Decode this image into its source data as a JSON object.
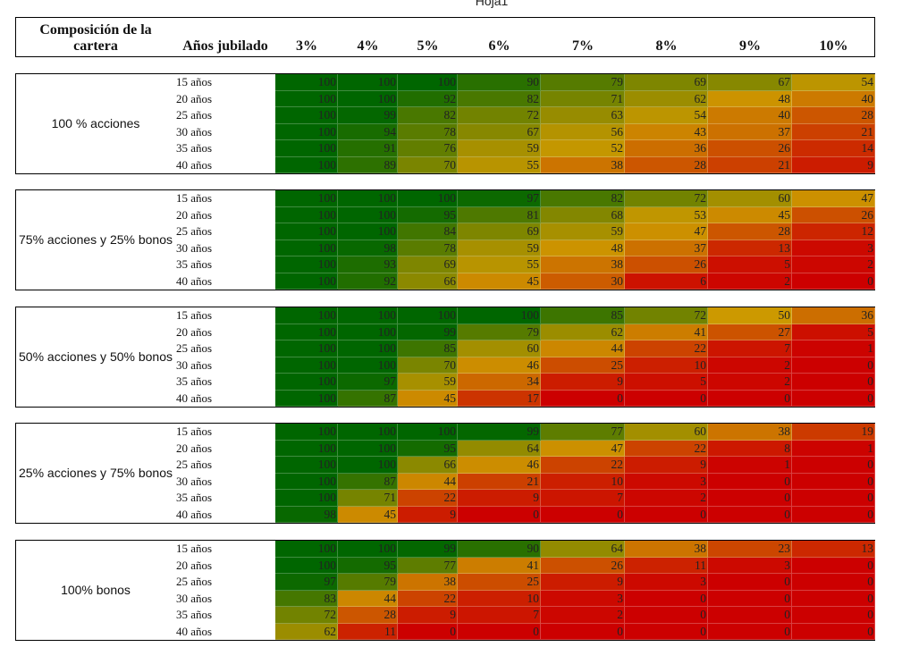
{
  "sheet_title": "Hoja1",
  "header": {
    "composition": "Composición de la cartera",
    "years": "Años jubilado",
    "rates": [
      "3%",
      "4%",
      "5%",
      "6%",
      "7%",
      "8%",
      "9%",
      "10%"
    ]
  },
  "color_scale": {
    "low": "#cc0000",
    "mid": "#cc9900",
    "high": "#006600",
    "min": 0,
    "max": 100
  },
  "groups": [
    {
      "label": "100 % acciones",
      "rows": [
        {
          "years": "15 años",
          "values": [
            "100",
            "100",
            "100",
            "90",
            "79",
            "69",
            "67",
            "54"
          ]
        },
        {
          "years": "20 años",
          "values": [
            "100",
            "100",
            "92",
            "82",
            "71",
            "62",
            "48",
            "40"
          ]
        },
        {
          "years": "25 años",
          "values": [
            "100",
            "99",
            "82",
            "72",
            "63",
            "54",
            "40",
            "28"
          ]
        },
        {
          "years": "30 años",
          "values": [
            "100",
            "94",
            "78",
            "67",
            "56",
            "43",
            "37",
            "21"
          ]
        },
        {
          "years": "35 años",
          "values": [
            "100",
            "91",
            "76",
            "59",
            "52",
            "36",
            "26",
            "14"
          ]
        },
        {
          "years": "40 años",
          "values": [
            "100",
            "89",
            "70",
            "55",
            "38",
            "28",
            "21",
            "9"
          ]
        }
      ]
    },
    {
      "label": "75% acciones y 25% bonos",
      "rows": [
        {
          "years": "15 años",
          "values": [
            "100",
            "100",
            "100",
            "97",
            "82",
            "72",
            "60",
            "47"
          ]
        },
        {
          "years": "20 años",
          "values": [
            "100",
            "100",
            "95",
            "81",
            "68",
            "53",
            "45",
            "26"
          ]
        },
        {
          "years": "25 años",
          "values": [
            "100",
            "100",
            "84",
            "69",
            "59",
            "47",
            "28",
            "12"
          ]
        },
        {
          "years": "30 años",
          "values": [
            "100",
            "98",
            "78",
            "59",
            "48",
            "37",
            "13",
            "3"
          ]
        },
        {
          "years": "35 años",
          "values": [
            "100",
            "93",
            "69",
            "55",
            "38",
            "26",
            "5",
            "2"
          ]
        },
        {
          "years": "40 años",
          "values": [
            "100",
            "92",
            "66",
            "45",
            "30",
            "6",
            "2",
            "0"
          ]
        }
      ]
    },
    {
      "label": "50% acciones y 50% bonos",
      "rows": [
        {
          "years": "15 años",
          "values": [
            "100",
            "100",
            "100",
            "100",
            "85",
            "72",
            "50",
            "36"
          ]
        },
        {
          "years": "20 años",
          "values": [
            "100",
            "100",
            "99",
            "79",
            "62",
            "41",
            "27",
            "5"
          ]
        },
        {
          "years": "25 años",
          "values": [
            "100",
            "100",
            "85",
            "60",
            "44",
            "22",
            "7",
            "1"
          ]
        },
        {
          "years": "30 años",
          "values": [
            "100",
            "100",
            "70",
            "46",
            "25",
            "10",
            "2",
            "0"
          ]
        },
        {
          "years": "35 años",
          "values": [
            "100",
            "97",
            "59",
            "34",
            "9",
            "5",
            "2",
            "0"
          ]
        },
        {
          "years": "40 años",
          "values": [
            "100",
            "87",
            "45",
            "17",
            "0",
            "0",
            "0",
            "0"
          ]
        }
      ]
    },
    {
      "label": "25% acciones y 75% bonos",
      "rows": [
        {
          "years": "15 años",
          "values": [
            "100",
            "100",
            "100",
            "99",
            "77",
            "60",
            "38",
            "19"
          ]
        },
        {
          "years": "20 años",
          "values": [
            "100",
            "100",
            "95",
            "64",
            "47",
            "22",
            "8",
            "1"
          ]
        },
        {
          "years": "25 años",
          "values": [
            "100",
            "100",
            "66",
            "46",
            "22",
            "9",
            "1",
            "0"
          ]
        },
        {
          "years": "30 años",
          "values": [
            "100",
            "87",
            "44",
            "21",
            "10",
            "3",
            "0",
            "0"
          ]
        },
        {
          "years": "35 años",
          "values": [
            "100",
            "71",
            "22",
            "9",
            "7",
            "2",
            "0",
            "0"
          ]
        },
        {
          "years": "40 años",
          "values": [
            "98",
            "45",
            "9",
            "0",
            "0",
            "0",
            "0",
            "0"
          ]
        }
      ]
    },
    {
      "label": "100% bonos",
      "rows": [
        {
          "years": "15 años",
          "values": [
            "100",
            "100",
            "99",
            "90",
            "64",
            "38",
            "23",
            "13"
          ]
        },
        {
          "years": "20 años",
          "values": [
            "100",
            "95",
            "77",
            "41",
            "26",
            "11",
            "3",
            "0"
          ]
        },
        {
          "years": "25 años",
          "values": [
            "97",
            "79",
            "38",
            "25",
            "9",
            "3",
            "0",
            "0"
          ]
        },
        {
          "years": "30 años",
          "values": [
            "83",
            "44",
            "22",
            "10",
            "3",
            "0",
            "0",
            "0"
          ]
        },
        {
          "years": "35 años",
          "values": [
            "72",
            "28",
            "9",
            "7",
            "2",
            "0",
            "0",
            "0"
          ]
        },
        {
          "years": "40 años",
          "values": [
            "62",
            "11",
            "0",
            "0",
            "0",
            "0",
            "0",
            "0"
          ]
        }
      ]
    }
  ]
}
